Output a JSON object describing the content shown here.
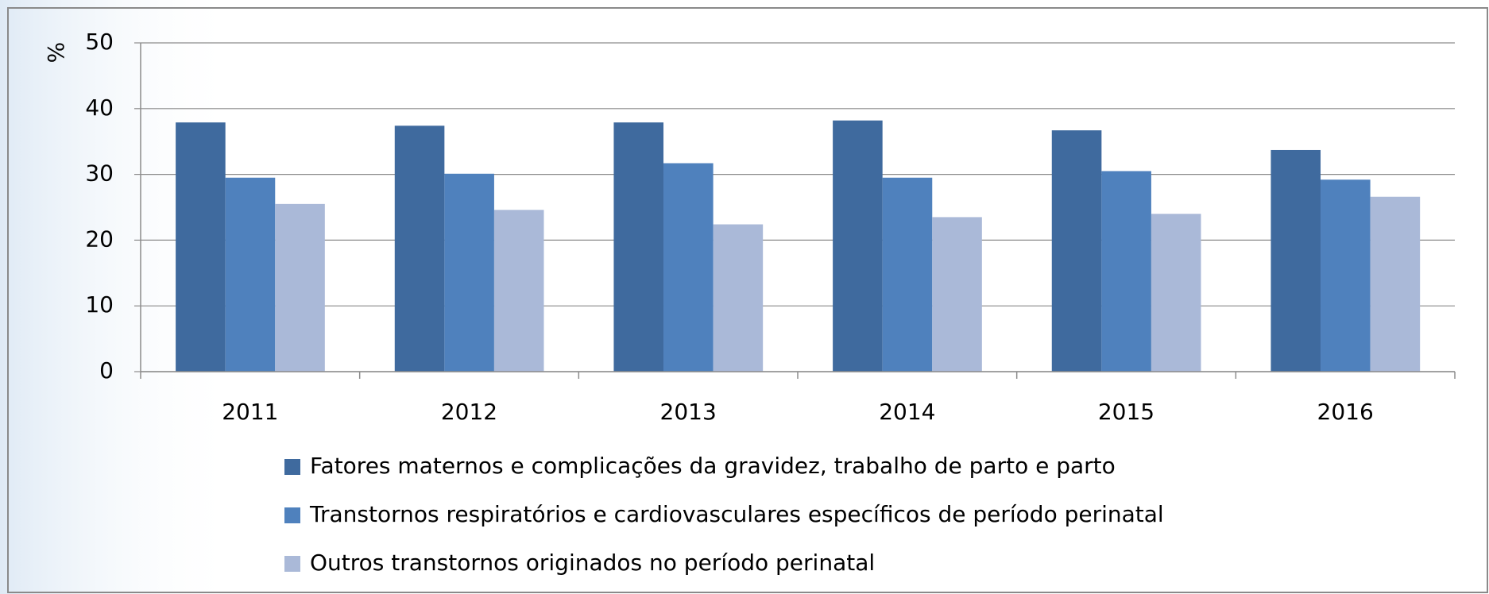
{
  "chart_data": {
    "type": "bar",
    "y_label": "%",
    "categories": [
      "2011",
      "2012",
      "2013",
      "2014",
      "2015",
      "2016"
    ],
    "series": [
      {
        "name": "Fatores maternos e complicações da gravidez, trabalho de parto e parto",
        "color": "#3f6a9e",
        "values": [
          37.9,
          37.4,
          37.9,
          38.2,
          36.7,
          33.7
        ]
      },
      {
        "name": "Transtornos respiratórios e cardiovasculares específicos de período perinatal",
        "color": "#4f81bd",
        "values": [
          29.5,
          30.1,
          31.7,
          29.5,
          30.5,
          29.2
        ]
      },
      {
        "name": "Outros transtornos originados no período perinatal",
        "color": "#aab9d8",
        "values": [
          25.5,
          24.6,
          22.4,
          23.5,
          24.0,
          26.6
        ]
      }
    ],
    "ylim": [
      0,
      50
    ],
    "yticks": [
      0,
      10,
      20,
      30,
      40,
      50
    ],
    "grid": true,
    "legend": "bottom"
  }
}
